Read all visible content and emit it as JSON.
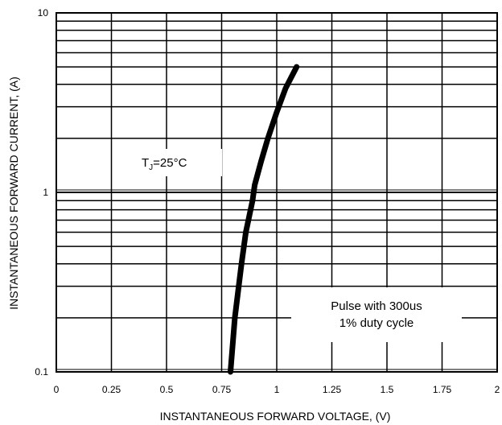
{
  "chart_data": {
    "type": "line",
    "title": "",
    "xlabel": "INSTANTANEOUS FORWARD VOLTAGE, (V)",
    "ylabel": "INSTANTANEOUS FORWARD CURRENT, (A)",
    "xlim": [
      0,
      2
    ],
    "ylim": [
      0.1,
      10
    ],
    "y_scale": "log",
    "grid": true,
    "x_ticks": [
      0,
      0.25,
      0.5,
      0.75,
      1,
      1.25,
      1.5,
      1.75,
      2
    ],
    "x_tick_labels": [
      "0",
      "0.25",
      "0.5",
      "0.75",
      "1",
      "1.25",
      "1.5",
      "1.75",
      "2"
    ],
    "y_ticks": [
      0.1,
      1,
      10
    ],
    "y_tick_labels": [
      "0.1",
      "1",
      "10"
    ],
    "series": [
      {
        "x": [
          0.79,
          0.81,
          0.84,
          0.86,
          0.89,
          0.9,
          0.93,
          0.96,
          1.0,
          1.04,
          1.09
        ],
        "y": [
          0.1,
          0.2,
          0.4,
          0.6,
          0.9,
          1.1,
          1.5,
          2.0,
          2.8,
          3.8,
          5.0
        ]
      }
    ],
    "line_color": "#000000",
    "annotations": [
      {
        "id": "tj",
        "text_main": "T",
        "text_sub": "J",
        "text_rest": "=25°C"
      },
      {
        "id": "pulse",
        "line1": "Pulse with 300us",
        "line2": "1% duty cycle"
      }
    ]
  }
}
